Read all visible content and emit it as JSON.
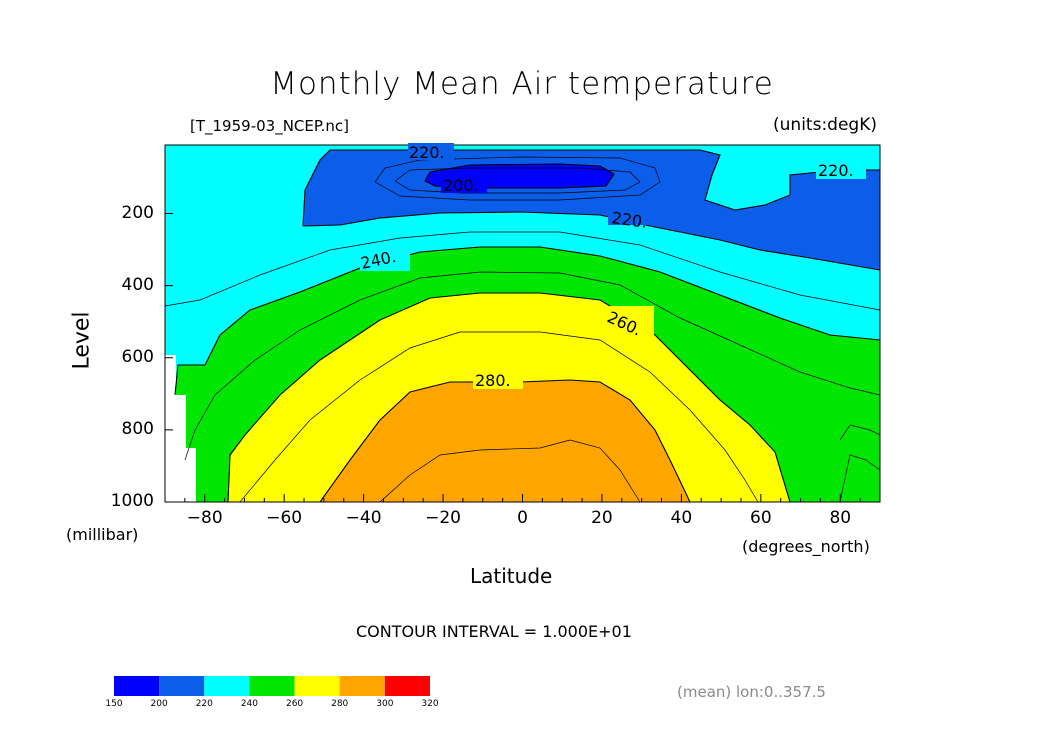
{
  "title": "Monthly Mean Air temperature",
  "file_label": "[T_1959-03_NCEP.nc]",
  "units_label": "(units:degK)",
  "contour_interval": "CONTOUR INTERVAL = 1.000E+01",
  "mean_note": "(mean) lon:0..357.5",
  "chart_data": {
    "type": "contour",
    "xlabel": "Latitude",
    "xunit": "(degrees_north)",
    "ylabel": "Level",
    "yunit": "(millibar)",
    "xlim": [
      -90,
      90
    ],
    "ylim": [
      1000,
      10
    ],
    "xticks": [
      "-80",
      "-60",
      "-40",
      "-20",
      "0",
      "20",
      "40",
      "60",
      "80"
    ],
    "yticks": [
      "200",
      "400",
      "600",
      "800",
      "1000"
    ],
    "contour_levels": [
      150,
      200,
      220,
      240,
      260,
      280,
      300,
      320
    ],
    "contour_labels": [
      "220.",
      "200.",
      "220.",
      "220.",
      "240.",
      "260.",
      "280."
    ],
    "colorbar": {
      "ticks": [
        "150",
        "200",
        "220",
        "240",
        "260",
        "280",
        "300",
        "320"
      ],
      "colors": [
        "#0000ff",
        "#0a5eea",
        "#00ffff",
        "#00e600",
        "#ffff00",
        "#ffa500",
        "#ff0000"
      ]
    }
  }
}
